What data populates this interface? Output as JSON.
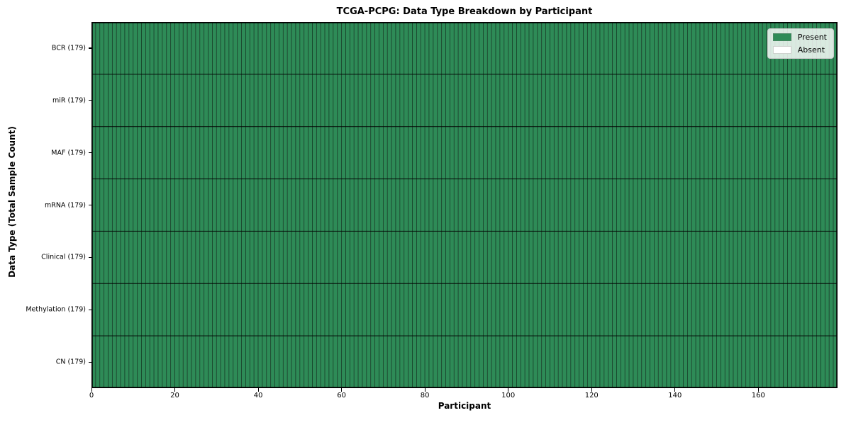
{
  "chart_data": {
    "type": "heatmap",
    "title": "TCGA-PCPG: Data Type Breakdown by Participant",
    "xlabel": "Participant",
    "ylabel": "Data Type (Total Sample Count)",
    "x_ticks": [
      0,
      20,
      40,
      60,
      80,
      100,
      120,
      140,
      160
    ],
    "xlim": [
      0,
      179
    ],
    "n_participants": 179,
    "rows": [
      {
        "label": "BCR (179)",
        "data_type": "BCR",
        "total_samples": 179,
        "present": 179,
        "absent": 0
      },
      {
        "label": "miR (179)",
        "data_type": "miR",
        "total_samples": 179,
        "present": 179,
        "absent": 0
      },
      {
        "label": "MAF (179)",
        "data_type": "MAF",
        "total_samples": 179,
        "present": 179,
        "absent": 0
      },
      {
        "label": "mRNA (179)",
        "data_type": "mRNA",
        "total_samples": 179,
        "present": 179,
        "absent": 0
      },
      {
        "label": "Clinical (179)",
        "data_type": "Clinical",
        "total_samples": 179,
        "present": 179,
        "absent": 0
      },
      {
        "label": "Methylation (179)",
        "data_type": "Methylation",
        "total_samples": 179,
        "present": 179,
        "absent": 0
      },
      {
        "label": "CN (179)",
        "data_type": "CN",
        "total_samples": 179,
        "present": 179,
        "absent": 0
      }
    ],
    "all_cells": "Present",
    "legend": {
      "position": "upper right",
      "entries": [
        {
          "label": "Present",
          "color": "#2e8b57"
        },
        {
          "label": "Absent",
          "color": "#ffffff"
        }
      ]
    },
    "colors": {
      "present": "#2e8b57",
      "absent": "#ffffff",
      "cell_edge": "#000000",
      "frame": "#000000"
    },
    "grid": false
  }
}
